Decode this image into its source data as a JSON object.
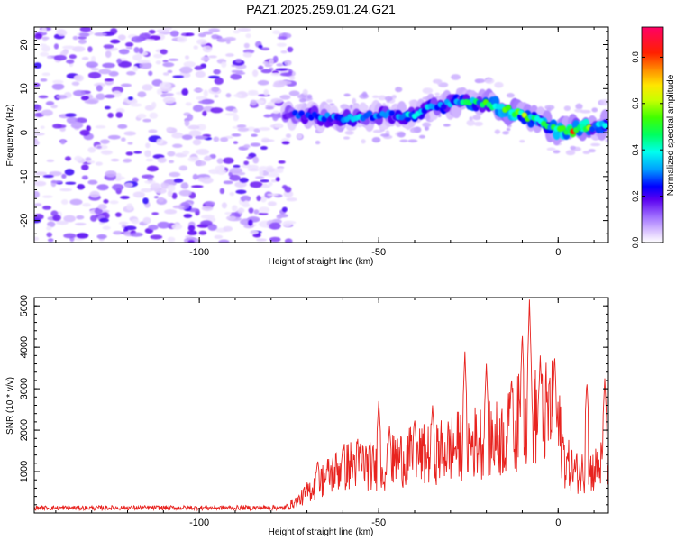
{
  "title": "PAZ1.2025.259.01.24.G21",
  "chart_data": [
    {
      "type": "heatmap",
      "xlabel": "Height of straight line (km)",
      "ylabel": "Frequency (Hz)",
      "xlim": [
        -146,
        14
      ],
      "ylim": [
        -25,
        24
      ],
      "xticks": [
        -100,
        -50,
        0
      ],
      "yticks": [
        -20,
        -10,
        0,
        10,
        20
      ],
      "colorbar": {
        "label": "Normalized spectral amplitude",
        "range": [
          0,
          0.93
        ],
        "ticks": [
          0.0,
          0.2,
          0.4,
          0.6,
          0.8
        ]
      },
      "ridge": {
        "x": [
          -76,
          -70,
          -65,
          -60,
          -55,
          -50,
          -45,
          -40,
          -35,
          -30,
          -25,
          -20,
          -15,
          -10,
          -5,
          0,
          5,
          10,
          14
        ],
        "frequency": [
          4,
          4,
          3.5,
          3,
          3.5,
          4,
          4,
          4,
          6,
          6.5,
          7,
          6.5,
          5.5,
          4,
          2.5,
          0.5,
          0.8,
          1.2,
          2
        ],
        "amplitude": [
          0.25,
          0.3,
          0.35,
          0.4,
          0.35,
          0.3,
          0.35,
          0.4,
          0.35,
          0.4,
          0.45,
          0.5,
          0.65,
          0.6,
          0.5,
          0.55,
          0.85,
          0.45,
          0.4
        ]
      }
    },
    {
      "type": "line",
      "xlabel": "Height of straight line (km)",
      "ylabel": "SNR (10 * v/v)",
      "xlim": [
        -146,
        14
      ],
      "ylim": [
        0,
        5200
      ],
      "xticks": [
        -100,
        -50,
        0
      ],
      "yticks": [
        1000,
        2000,
        3000,
        4000,
        5000
      ],
      "color": "#e8231f",
      "envelope": {
        "x": [
          -146,
          -80,
          -76,
          -72,
          -68,
          -64,
          -60,
          -55,
          -50,
          -45,
          -40,
          -35,
          -30,
          -25,
          -20,
          -15,
          -12,
          -10,
          -8,
          -6,
          -4,
          -2,
          0,
          2,
          5,
          10,
          14
        ],
        "snr": [
          120,
          130,
          200,
          500,
          1000,
          1400,
          1700,
          1900,
          1600,
          2000,
          2100,
          2200,
          2400,
          2600,
          2700,
          2800,
          3200,
          3600,
          3900,
          3500,
          3600,
          3800,
          3200,
          1900,
          1500,
          1600,
          2000
        ]
      },
      "peaks": [
        {
          "x": -67,
          "snr": 1280
        },
        {
          "x": -60,
          "snr": 1600
        },
        {
          "x": -50,
          "snr": 2700
        },
        {
          "x": -47,
          "snr": 2100
        },
        {
          "x": -40,
          "snr": 2300
        },
        {
          "x": -35,
          "snr": 2600
        },
        {
          "x": -26,
          "snr": 3900
        },
        {
          "x": -20,
          "snr": 3600
        },
        {
          "x": -13,
          "snr": 3300
        },
        {
          "x": -10,
          "snr": 4400
        },
        {
          "x": -8,
          "snr": 5150
        },
        {
          "x": -5,
          "snr": 3800
        },
        {
          "x": -1,
          "snr": 3850
        },
        {
          "x": 8,
          "snr": 3200
        },
        {
          "x": 13,
          "snr": 3250
        }
      ]
    }
  ]
}
